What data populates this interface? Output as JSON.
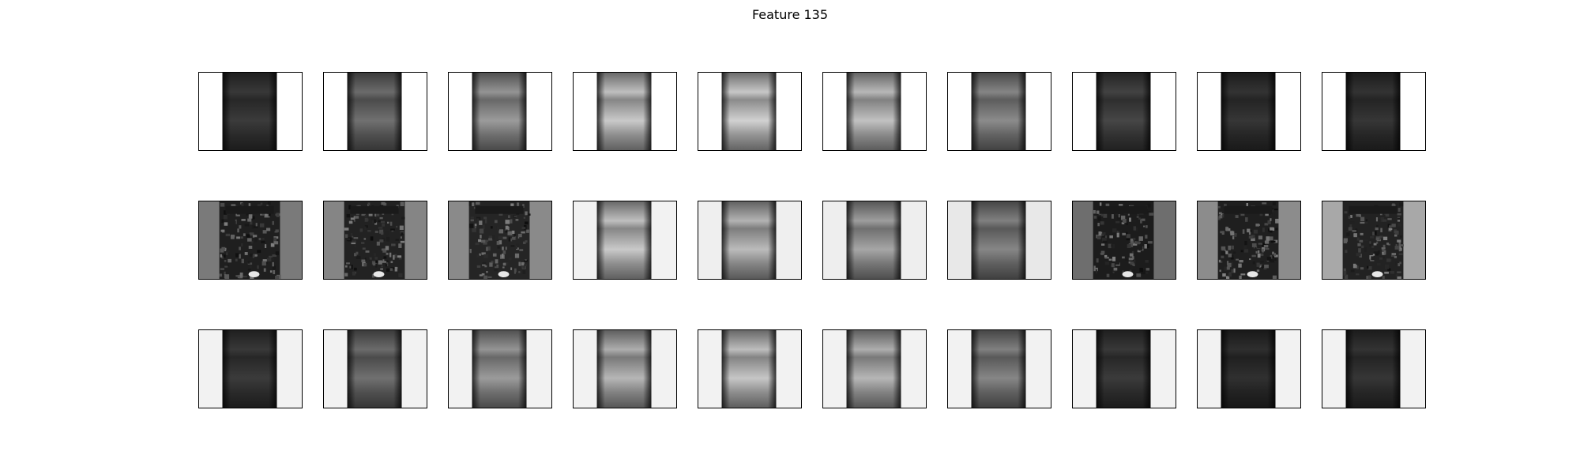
{
  "figure": {
    "title": "Feature 135"
  },
  "grid": {
    "rows": 3,
    "cols": 10,
    "panels": [
      {
        "row": 0,
        "col": 0,
        "variant": "smooth",
        "bg": "#ffffff",
        "brightness": 0.22
      },
      {
        "row": 0,
        "col": 1,
        "variant": "smooth",
        "bg": "#ffffff",
        "brightness": 0.42
      },
      {
        "row": 0,
        "col": 2,
        "variant": "smooth",
        "bg": "#ffffff",
        "brightness": 0.58
      },
      {
        "row": 0,
        "col": 3,
        "variant": "smooth",
        "bg": "#ffffff",
        "brightness": 0.75
      },
      {
        "row": 0,
        "col": 4,
        "variant": "smooth",
        "bg": "#ffffff",
        "brightness": 0.78
      },
      {
        "row": 0,
        "col": 5,
        "variant": "smooth",
        "bg": "#ffffff",
        "brightness": 0.72
      },
      {
        "row": 0,
        "col": 6,
        "variant": "smooth",
        "bg": "#ffffff",
        "brightness": 0.52
      },
      {
        "row": 0,
        "col": 7,
        "variant": "smooth",
        "bg": "#ffffff",
        "brightness": 0.26
      },
      {
        "row": 0,
        "col": 8,
        "variant": "smooth",
        "bg": "#ffffff",
        "brightness": 0.2
      },
      {
        "row": 0,
        "col": 9,
        "variant": "smooth",
        "bg": "#ffffff",
        "brightness": 0.2
      },
      {
        "row": 1,
        "col": 0,
        "variant": "noisy",
        "bg": "#7a7a7a",
        "brightness": 0.2
      },
      {
        "row": 1,
        "col": 1,
        "variant": "noisy",
        "bg": "#858585",
        "brightness": 0.22
      },
      {
        "row": 1,
        "col": 2,
        "variant": "noisy",
        "bg": "#8a8a8a",
        "brightness": 0.24
      },
      {
        "row": 1,
        "col": 3,
        "variant": "smooth",
        "bg": "#f2f2f2",
        "brightness": 0.75
      },
      {
        "row": 1,
        "col": 4,
        "variant": "smooth",
        "bg": "#efefef",
        "brightness": 0.7
      },
      {
        "row": 1,
        "col": 5,
        "variant": "smooth",
        "bg": "#eeeeee",
        "brightness": 0.62
      },
      {
        "row": 1,
        "col": 6,
        "variant": "smooth",
        "bg": "#e8e8e8",
        "brightness": 0.5
      },
      {
        "row": 1,
        "col": 7,
        "variant": "noisy",
        "bg": "#6e6e6e",
        "brightness": 0.18
      },
      {
        "row": 1,
        "col": 8,
        "variant": "noisy",
        "bg": "#8c8c8c",
        "brightness": 0.2
      },
      {
        "row": 1,
        "col": 9,
        "variant": "noisy",
        "bg": "#a8a8a8",
        "brightness": 0.22
      },
      {
        "row": 2,
        "col": 0,
        "variant": "smooth",
        "bg": "#f2f2f2",
        "brightness": 0.22
      },
      {
        "row": 2,
        "col": 1,
        "variant": "smooth",
        "bg": "#f2f2f2",
        "brightness": 0.42
      },
      {
        "row": 2,
        "col": 2,
        "variant": "smooth",
        "bg": "#f2f2f2",
        "brightness": 0.58
      },
      {
        "row": 2,
        "col": 3,
        "variant": "smooth",
        "bg": "#f2f2f2",
        "brightness": 0.68
      },
      {
        "row": 2,
        "col": 4,
        "variant": "smooth",
        "bg": "#f2f2f2",
        "brightness": 0.74
      },
      {
        "row": 2,
        "col": 5,
        "variant": "smooth",
        "bg": "#f2f2f2",
        "brightness": 0.68
      },
      {
        "row": 2,
        "col": 6,
        "variant": "smooth",
        "bg": "#f2f2f2",
        "brightness": 0.5
      },
      {
        "row": 2,
        "col": 7,
        "variant": "smooth",
        "bg": "#f2f2f2",
        "brightness": 0.22
      },
      {
        "row": 2,
        "col": 8,
        "variant": "smooth",
        "bg": "#f2f2f2",
        "brightness": 0.18
      },
      {
        "row": 2,
        "col": 9,
        "variant": "smooth",
        "bg": "#f2f2f2",
        "brightness": 0.2
      }
    ]
  }
}
